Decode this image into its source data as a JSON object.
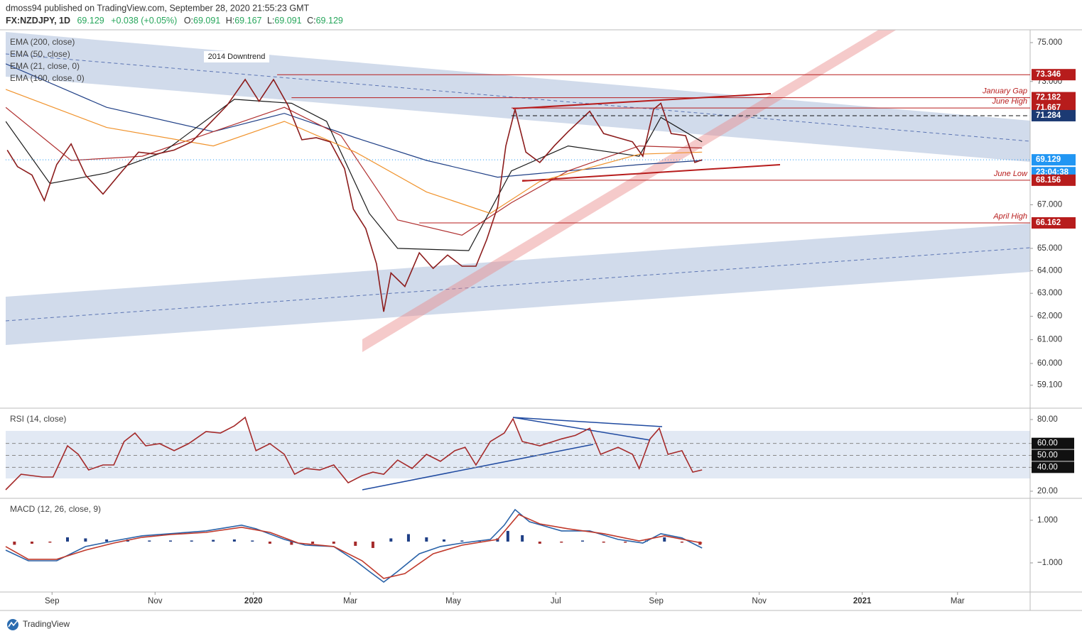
{
  "header": {
    "author_line": "dmoss94 published on TradingView.com, September 28, 2020 21:55:23 GMT",
    "symbol": "FX:NZDJPY, 1D",
    "last": "69.129",
    "change": "+0.038 (+0.05%)",
    "ohlc": [
      {
        "key": "O:",
        "value": "69.091"
      },
      {
        "key": "H:",
        "value": "69.167"
      },
      {
        "key": "L:",
        "value": "69.091"
      },
      {
        "key": "C:",
        "value": "69.129"
      }
    ]
  },
  "chart_data": [
    {
      "type": "line",
      "log": true,
      "xlim": [
        0.11,
        20.0
      ],
      "xticks": [
        {
          "value": 1.01,
          "label": "Sep"
        },
        {
          "value": 3.01,
          "label": "Nov"
        },
        {
          "value": 4.92,
          "label": "2020"
        },
        {
          "value": 6.8,
          "label": "Mar"
        },
        {
          "value": 8.8,
          "label": "May"
        },
        {
          "value": 10.79,
          "label": "Jul"
        },
        {
          "value": 12.74,
          "label": "Sep"
        },
        {
          "value": 14.74,
          "label": "Nov"
        },
        {
          "value": 16.74,
          "label": "2021"
        },
        {
          "value": 18.59,
          "label": "Mar"
        }
      ],
      "ylim": [
        58.25,
        75.67
      ],
      "yticks": [
        {
          "value": 75,
          "label": "75.000"
        },
        {
          "value": 73,
          "label": "73.000"
        },
        {
          "value": 67,
          "label": "67.000"
        },
        {
          "value": 65,
          "label": "65.000"
        },
        {
          "value": 64,
          "label": "64.000"
        },
        {
          "value": 63,
          "label": "63.000"
        },
        {
          "value": 62,
          "label": "62.000"
        },
        {
          "value": 61,
          "label": "61.000"
        },
        {
          "value": 60,
          "label": "60.000"
        },
        {
          "value": 59.1,
          "label": "59.100"
        }
      ],
      "series": [
        {
          "name": "EMA (200, close)",
          "color": "#1f3f86",
          "x": [
            0.11,
            2.07,
            4.14,
            5.52,
            6.9,
            8.28,
            9.66,
            11.03,
            12.41,
            13.63
          ],
          "values": [
            73.9,
            71.7,
            70.5,
            71.4,
            70.2,
            69.1,
            68.3,
            68.6,
            68.9,
            69.1
          ]
        },
        {
          "name": "EMA (50, close)",
          "color": "#b03030",
          "x": [
            0.11,
            1.38,
            2.76,
            4.14,
            5.52,
            6.62,
            7.72,
            8.97,
            9.93,
            11.03,
            12.41,
            13.63
          ],
          "values": [
            71.7,
            69.1,
            69.3,
            70.5,
            71.7,
            70.3,
            66.3,
            65.6,
            67.1,
            68.6,
            69.8,
            69.7
          ]
        },
        {
          "name": "EMA (21, close, 0)",
          "color": "#1a1a1a",
          "x": [
            0.11,
            0.97,
            2.07,
            3.17,
            4.55,
            5.66,
            6.34,
            7.17,
            7.72,
            9.1,
            9.93,
            11.03,
            12.41,
            12.83,
            13.63
          ],
          "values": [
            71.0,
            68.0,
            68.5,
            69.5,
            72.1,
            71.9,
            71.0,
            66.6,
            65.0,
            64.9,
            68.6,
            69.8,
            69.3,
            71.2,
            70.0
          ]
        },
        {
          "name": "EMA (100, close, 0)",
          "color": "#f0922b",
          "x": [
            0.11,
            2.07,
            4.14,
            5.52,
            6.9,
            8.28,
            9.52,
            10.48,
            12.41,
            13.63
          ],
          "values": [
            72.6,
            70.7,
            69.8,
            71.0,
            69.5,
            67.6,
            66.6,
            68.1,
            69.4,
            69.5
          ]
        },
        {
          "color": "#8c1c1c",
          "x": [
            0.14,
            0.34,
            0.62,
            0.86,
            1.1,
            1.38,
            1.66,
            2.0,
            2.34,
            2.69,
            3.03,
            3.38,
            3.72,
            4.07,
            4.41,
            4.76,
            5.03,
            5.31,
            5.59,
            5.86,
            6.14,
            6.41,
            6.69,
            6.86,
            7.1,
            7.31,
            7.45,
            7.59,
            7.86,
            8.14,
            8.41,
            8.69,
            8.97,
            9.24,
            9.45,
            9.66,
            9.82,
            10.0,
            10.21,
            10.48,
            10.76,
            11.03,
            11.45,
            11.72,
            12.0,
            12.28,
            12.48,
            12.69,
            12.83,
            13.03,
            13.31,
            13.49,
            13.63
          ],
          "values": [
            69.6,
            68.8,
            68.4,
            67.2,
            68.9,
            69.9,
            68.4,
            67.5,
            68.5,
            69.5,
            69.4,
            69.6,
            70.0,
            70.9,
            71.8,
            73.1,
            72.0,
            73.1,
            71.8,
            70.1,
            70.2,
            70.0,
            68.7,
            66.8,
            65.9,
            64.3,
            62.2,
            63.9,
            63.3,
            64.8,
            64.1,
            64.7,
            64.2,
            64.2,
            65.4,
            66.9,
            69.8,
            71.6,
            69.5,
            69.0,
            69.8,
            70.5,
            71.5,
            70.4,
            70.2,
            70.0,
            69.3,
            71.6,
            71.9,
            70.4,
            70.3,
            69.0,
            69.129
          ]
        }
      ],
      "levels": [
        {
          "value": 73.346,
          "x": 5.38,
          "color": "#b71c1c"
        },
        {
          "value": 72.182,
          "x": 5.66,
          "color": "#b71c1c",
          "label": "January Gap"
        },
        {
          "value": 71.667,
          "x": 9.93,
          "color": "#b71c1c",
          "label": "June High"
        },
        {
          "value": 71.284,
          "x": 9.93,
          "color": "#1c3a73",
          "dash": true
        },
        {
          "value": 69.129,
          "x": 0.11,
          "color": "#2196f3",
          "dash": true,
          "countdown": "23:04:38"
        },
        {
          "value": 68.156,
          "x": 10.14,
          "color": "#b71c1c",
          "label": "June Low"
        },
        {
          "value": 66.162,
          "x": 8.14,
          "color": "#b71c1c",
          "label": "April High"
        }
      ],
      "annotations": [
        {
          "text": "2014 Downtrend"
        }
      ]
    },
    {
      "type": "line",
      "title": "RSI (14, close)",
      "ylim": [
        15.25,
        87.72
      ],
      "yticks": [
        {
          "value": 80,
          "label": "80.00"
        },
        {
          "value": 60,
          "label": "60.00"
        },
        {
          "value": 50,
          "label": "50.00"
        },
        {
          "value": 40,
          "label": "40.00"
        },
        {
          "value": 20,
          "label": "20.00"
        }
      ],
      "series": [
        {
          "color": "#a52a2a",
          "x": [
            0.11,
            0.41,
            0.83,
            1.03,
            1.31,
            1.52,
            1.72,
            2.0,
            2.21,
            2.41,
            2.62,
            2.83,
            3.1,
            3.38,
            3.66,
            4.0,
            4.28,
            4.55,
            4.76,
            4.97,
            5.24,
            5.52,
            5.72,
            5.93,
            6.21,
            6.48,
            6.76,
            7.03,
            7.24,
            7.45,
            7.72,
            8.0,
            8.28,
            8.55,
            8.83,
            9.03,
            9.24,
            9.52,
            9.79,
            9.96,
            10.14,
            10.48,
            10.9,
            11.17,
            11.45,
            11.66,
            12.0,
            12.28,
            12.41,
            12.62,
            12.8,
            12.97,
            13.24,
            13.45,
            13.63
          ],
          "values": [
            21.2,
            34.2,
            31.9,
            31.9,
            58.0,
            50.9,
            37.8,
            42.0,
            42.0,
            61.6,
            68.7,
            58.0,
            59.8,
            53.9,
            59.8,
            69.9,
            68.7,
            74.7,
            81.8,
            53.9,
            59.8,
            50.9,
            34.2,
            39.0,
            37.8,
            42.0,
            27.1,
            33.1,
            36.0,
            34.2,
            46.1,
            39.0,
            50.9,
            45.0,
            53.9,
            56.8,
            42.0,
            61.6,
            68.7,
            80.6,
            61.6,
            58.0,
            63.8,
            66.7,
            72.7,
            50.9,
            56.8,
            50.9,
            39.0,
            63.8,
            72.7,
            50.9,
            53.9,
            36.0,
            37.8
          ]
        }
      ]
    },
    {
      "type": "line",
      "title": "MACD (12, 26, close, 9)",
      "ylim": [
        -2.3,
        1.93
      ],
      "yticks": [
        {
          "value": 1,
          "label": "1.000"
        },
        {
          "value": -1,
          "label": "−1.000"
        }
      ],
      "histogram": {
        "color": "#1f3f86",
        "negative_color": "#a52a2a",
        "x": [
          0.28,
          0.62,
          0.97,
          1.31,
          1.66,
          2.07,
          2.48,
          2.9,
          3.31,
          3.72,
          4.14,
          4.55,
          4.9,
          5.24,
          5.66,
          6.07,
          6.48,
          6.9,
          7.24,
          7.59,
          7.93,
          8.28,
          8.62,
          8.97,
          9.31,
          9.66,
          9.86,
          10.14,
          10.48,
          10.9,
          11.31,
          11.72,
          12.14,
          12.55,
          12.9,
          13.24,
          13.59
        ],
        "values": [
          -0.15,
          -0.1,
          -0.05,
          0.2,
          0.15,
          0.1,
          0.1,
          0.05,
          0.05,
          0.05,
          0.08,
          0.1,
          0.05,
          -0.1,
          -0.15,
          -0.1,
          -0.1,
          -0.2,
          -0.3,
          0.15,
          0.35,
          0.2,
          0.1,
          0.05,
          0.05,
          0.15,
          0.5,
          0.3,
          -0.1,
          -0.05,
          0.05,
          -0.05,
          -0.05,
          0.05,
          0.2,
          -0.05,
          -0.15
        ]
      },
      "series": [
        {
          "color": "#2962a8",
          "x": [
            0.11,
            0.55,
            1.1,
            1.66,
            2.21,
            2.76,
            3.31,
            4.0,
            4.69,
            4.97,
            5.52,
            5.93,
            6.48,
            6.9,
            7.17,
            7.45,
            7.72,
            8.14,
            8.55,
            8.97,
            9.52,
            9.79,
            10.0,
            10.28,
            10.9,
            11.45,
            12.0,
            12.48,
            12.83,
            13.24,
            13.63
          ],
          "values": [
            -0.4,
            -0.9,
            -0.9,
            -0.23,
            0.03,
            0.27,
            0.37,
            0.5,
            0.77,
            0.6,
            0.1,
            -0.17,
            -0.23,
            -0.9,
            -1.4,
            -1.9,
            -1.4,
            -0.57,
            -0.23,
            -0.07,
            0.1,
            0.77,
            1.5,
            0.93,
            0.5,
            0.5,
            0.1,
            -0.07,
            0.37,
            0.17,
            -0.3
          ]
        },
        {
          "color": "#c0392b",
          "x": [
            0.11,
            0.55,
            1.1,
            1.66,
            2.21,
            2.76,
            3.31,
            4.0,
            4.69,
            5.24,
            5.79,
            6.48,
            7.03,
            7.45,
            7.86,
            8.41,
            8.97,
            9.66,
            10.07,
            10.48,
            11.03,
            11.72,
            12.41,
            12.9,
            13.63
          ],
          "values": [
            -0.23,
            -0.83,
            -0.83,
            -0.4,
            -0.07,
            0.2,
            0.33,
            0.43,
            0.67,
            0.43,
            -0.07,
            -0.23,
            -0.9,
            -1.73,
            -1.5,
            -0.57,
            -0.17,
            0.1,
            1.27,
            0.83,
            0.6,
            0.37,
            0.03,
            0.27,
            -0.07
          ]
        }
      ]
    }
  ],
  "footer": {
    "brand": "TradingView"
  }
}
